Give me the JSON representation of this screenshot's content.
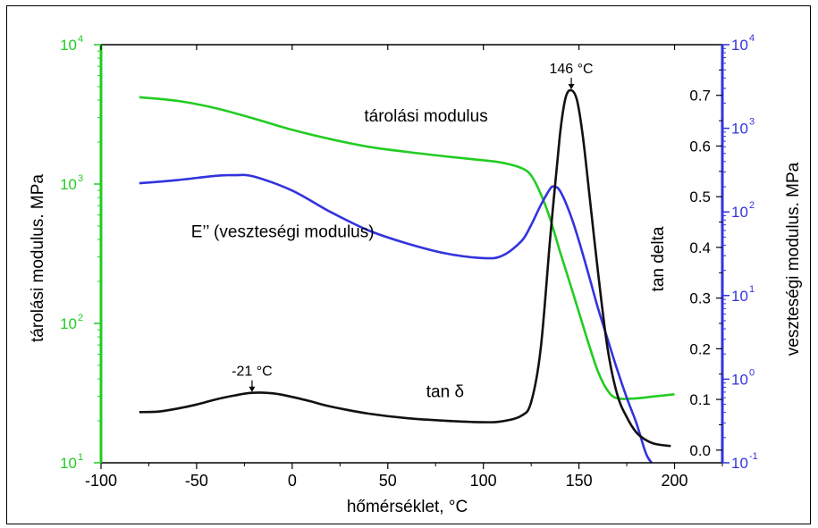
{
  "chart_data": {
    "type": "line",
    "xlabel": "hőmérséklet, °C",
    "ylabel_left": "tárolási modulus. MPa",
    "ylabel_right_inner": "tan delta",
    "ylabel_right_outer": "veszteségi modulus. MPa",
    "xlim": [
      -100,
      225
    ],
    "x_ticks": [
      -100,
      -50,
      0,
      50,
      100,
      150,
      200
    ],
    "y_left": {
      "scale": "log",
      "lim": [
        10,
        10000
      ],
      "ticks": [
        {
          "base": "10",
          "exp": "1"
        },
        {
          "base": "10",
          "exp": "2"
        },
        {
          "base": "10",
          "exp": "3"
        },
        {
          "base": "10",
          "exp": "4"
        }
      ]
    },
    "y_tan": {
      "scale": "linear",
      "lim": [
        -0.025,
        0.8
      ],
      "ticks": [
        "0.0",
        "0.1",
        "0.2",
        "0.3",
        "0.4",
        "0.5",
        "0.6",
        "0.7"
      ]
    },
    "y_right": {
      "scale": "log",
      "lim": [
        0.1,
        10000
      ],
      "ticks": [
        {
          "base": "10",
          "exp": "-1"
        },
        {
          "base": "10",
          "exp": "0"
        },
        {
          "base": "10",
          "exp": "1"
        },
        {
          "base": "10",
          "exp": "2"
        },
        {
          "base": "10",
          "exp": "3"
        },
        {
          "base": "10",
          "exp": "4"
        }
      ]
    },
    "series": [
      {
        "label": "tárolási modulus",
        "axis": "left",
        "color": "#22cc22",
        "x": [
          -80,
          -60,
          -40,
          -20,
          0,
          20,
          40,
          60,
          80,
          100,
          110,
          120,
          125,
          130,
          135,
          140,
          145,
          150,
          155,
          160,
          165,
          170,
          180,
          190,
          200
        ],
        "y": [
          4200,
          3950,
          3500,
          2950,
          2450,
          2100,
          1850,
          1700,
          1580,
          1480,
          1420,
          1300,
          1150,
          850,
          560,
          330,
          200,
          120,
          72,
          45,
          33,
          29,
          29,
          30,
          31
        ]
      },
      {
        "label": "E'' (veszteségi modulus)",
        "axis": "right",
        "color": "#3333dd",
        "x": [
          -80,
          -60,
          -40,
          -30,
          -20,
          0,
          20,
          40,
          60,
          80,
          100,
          110,
          120,
          125,
          130,
          135,
          137,
          140,
          145,
          150,
          155,
          160,
          165,
          170,
          175,
          180,
          185,
          188
        ],
        "y": [
          220,
          240,
          270,
          275,
          265,
          180,
          100,
          60,
          42,
          32,
          28,
          30,
          45,
          70,
          120,
          190,
          200,
          180,
          100,
          45,
          18,
          7,
          3,
          1.3,
          0.6,
          0.3,
          0.13,
          0.1
        ]
      },
      {
        "label": "tan δ",
        "axis": "tan",
        "color": "#111111",
        "x": [
          -80,
          -70,
          -60,
          -50,
          -40,
          -30,
          -21,
          -10,
          0,
          10,
          20,
          40,
          60,
          80,
          100,
          110,
          120,
          125,
          130,
          135,
          140,
          143,
          146,
          149,
          152,
          155,
          160,
          165,
          170,
          175,
          180,
          185,
          190,
          198
        ],
        "y": [
          0.075,
          0.076,
          0.082,
          0.09,
          0.1,
          0.108,
          0.113,
          0.112,
          0.105,
          0.096,
          0.086,
          0.072,
          0.063,
          0.058,
          0.055,
          0.057,
          0.068,
          0.095,
          0.2,
          0.42,
          0.62,
          0.695,
          0.71,
          0.69,
          0.62,
          0.52,
          0.35,
          0.2,
          0.11,
          0.065,
          0.035,
          0.02,
          0.012,
          0.008
        ]
      }
    ],
    "annotations": [
      {
        "text": "146 °C",
        "x": 146,
        "y": 0.71,
        "axis": "tan"
      },
      {
        "text": "-21 °C",
        "x": -21,
        "y": 0.113,
        "axis": "tan"
      }
    ],
    "series_labels": [
      {
        "text": "tárolási modulus",
        "x": 70,
        "axis": "left",
        "y": 2800
      },
      {
        "text": "E’’ (veszteségi modulus)",
        "x": -5,
        "axis": "right",
        "y": 50
      },
      {
        "text": "tan δ",
        "x": 80,
        "axis": "tan",
        "y": 0.105
      }
    ],
    "grid": false
  }
}
